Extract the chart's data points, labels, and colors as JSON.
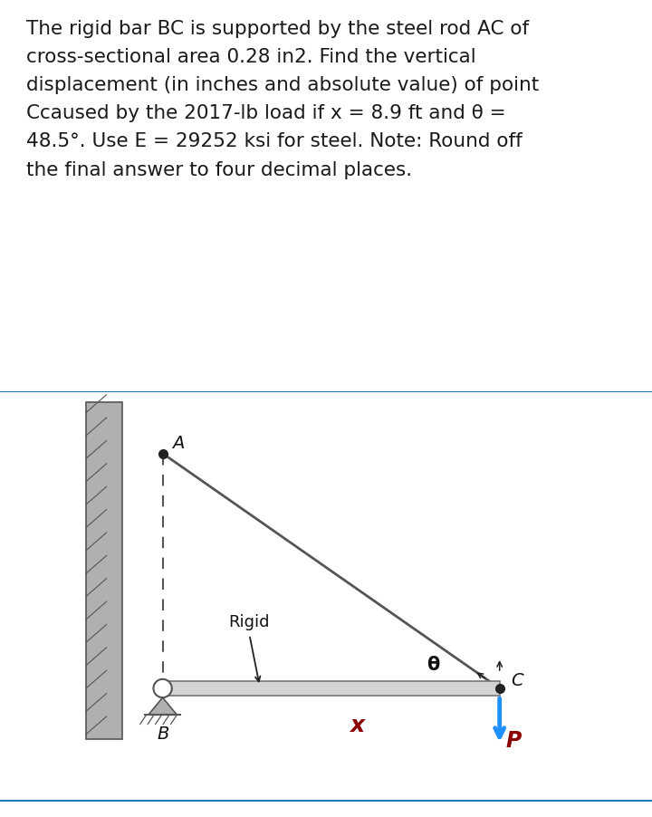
{
  "title_text": "The rigid bar BC is supported by the steel rod AC of\ncross-sectional area 0.28 in2. Find the vertical\ndisplacement (in inches and absolute value) of point\nCcaused by the 2017-lb load if x = 8.9 ft and θ =\n48.5°. Use E = 29252 ksi for steel. Note: Round off\nthe final answer to four decimal places.",
  "bg_color": "#ffffff",
  "text_color": "#1a1a1a",
  "fig_width": 7.2,
  "fig_height": 9.02,
  "diagram_bg": "#ffffff",
  "wall_color": "#aaaaaa",
  "bar_color": "#cccccc",
  "rod_color": "#555555",
  "dashed_color": "#555555",
  "arrow_color": "#1e90ff",
  "P_color": "#8b0000",
  "x_color": "#8b0000",
  "label_A": "A",
  "label_B": "B",
  "label_C": "C",
  "label_rigid": "Rigid",
  "label_theta": "θ",
  "label_x": "x",
  "label_P": "P",
  "top_bar_line_color": "#1a78b4",
  "bottom_bar_line_color": "#1a78b4",
  "dots_color": "#ffffff",
  "ellipsis_bg": "#1a1a1a"
}
